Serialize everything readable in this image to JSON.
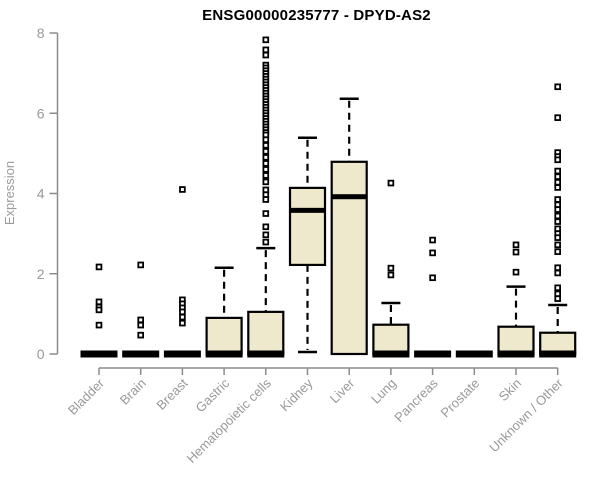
{
  "colors": {
    "box_fill": "#EEE8CD",
    "line": "#000000",
    "axis": "#8c8c8c",
    "tick_label": "#999999",
    "title": "#000000"
  },
  "chart_data": {
    "type": "boxplot",
    "title": "ENSG00000235777 - DPYD-AS2",
    "ylabel": "Expression",
    "xlabel": "",
    "ylim": [
      0,
      8
    ],
    "yticks": [
      0,
      2,
      4,
      6,
      8
    ],
    "grid": false,
    "legend": false,
    "categories": [
      "Bladder",
      "Brain",
      "Breast",
      "Gastric",
      "Hematopoietic cells",
      "Kidney",
      "Liver",
      "Lung",
      "Pancreas",
      "Prostate",
      "Skin",
      "Unknown / Other"
    ],
    "series": [
      {
        "category": "Bladder",
        "q1": 0,
        "median": 0,
        "q3": 0,
        "whisker_low": 0,
        "whisker_high": 0,
        "outliers": [
          2.17,
          1.3,
          1.17,
          1.1,
          0.72
        ]
      },
      {
        "category": "Brain",
        "q1": 0,
        "median": 0,
        "q3": 0,
        "whisker_low": 0,
        "whisker_high": 0,
        "outliers": [
          2.22,
          0.85,
          0.72,
          0.47
        ]
      },
      {
        "category": "Breast",
        "q1": 0,
        "median": 0,
        "q3": 0,
        "whisker_low": 0,
        "whisker_high": 0,
        "outliers": [
          4.1,
          1.35,
          1.25,
          1.15,
          1.05,
          0.92,
          0.77
        ]
      },
      {
        "category": "Gastric",
        "q1": 0,
        "median": 0,
        "q3": 0.9,
        "whisker_low": 0,
        "whisker_high": 2.15,
        "outliers": []
      },
      {
        "category": "Hematopoietic cells",
        "q1": 0,
        "median": 0,
        "q3": 1.05,
        "whisker_low": 0,
        "whisker_high": 2.64,
        "outliers": [
          7.83,
          7.58,
          7.45,
          7.2,
          7.13,
          7.06,
          6.99,
          6.92,
          6.85,
          6.78,
          6.71,
          6.64,
          6.57,
          6.5,
          6.43,
          6.36,
          6.29,
          6.22,
          6.15,
          6.08,
          6.01,
          5.94,
          5.87,
          5.8,
          5.73,
          5.66,
          5.59,
          5.52,
          5.46,
          5.34,
          5.2,
          5.05,
          4.9,
          4.75,
          4.6,
          4.45,
          4.29,
          4.09,
          3.97,
          3.85,
          3.5,
          3.17,
          2.97,
          2.79
        ]
      },
      {
        "category": "Kidney",
        "q1": 2.22,
        "median": 3.58,
        "q3": 4.14,
        "whisker_low": 0.05,
        "whisker_high": 5.39,
        "outliers": []
      },
      {
        "category": "Liver",
        "q1": 0,
        "median": 3.92,
        "q3": 4.79,
        "whisker_low": 0,
        "whisker_high": 6.36,
        "outliers": []
      },
      {
        "category": "Lung",
        "q1": 0,
        "median": 0,
        "q3": 0.73,
        "whisker_low": 0,
        "whisker_high": 1.27,
        "outliers": [
          4.26,
          2.14,
          1.97
        ]
      },
      {
        "category": "Pancreas",
        "q1": 0,
        "median": 0,
        "q3": 0,
        "whisker_low": 0,
        "whisker_high": 0,
        "outliers": [
          2.84,
          2.52,
          1.9
        ]
      },
      {
        "category": "Prostate",
        "q1": 0,
        "median": 0,
        "q3": 0,
        "whisker_low": 0,
        "whisker_high": 0,
        "outliers": []
      },
      {
        "category": "Skin",
        "q1": 0,
        "median": 0,
        "q3": 0.68,
        "whisker_low": 0,
        "whisker_high": 1.68,
        "outliers": [
          2.72,
          2.54,
          2.04
        ]
      },
      {
        "category": "Unknown / Other",
        "q1": 0,
        "median": 0,
        "q3": 0.53,
        "whisker_low": 0,
        "whisker_high": 1.22,
        "outliers": [
          6.66,
          5.89,
          5.02,
          4.92,
          4.84,
          4.56,
          4.42,
          4.28,
          4.15,
          3.85,
          3.72,
          3.6,
          3.44,
          3.3,
          3.12,
          3.0,
          2.9,
          2.72,
          2.55,
          2.15,
          2.02,
          1.65,
          1.5,
          1.38
        ]
      }
    ]
  }
}
